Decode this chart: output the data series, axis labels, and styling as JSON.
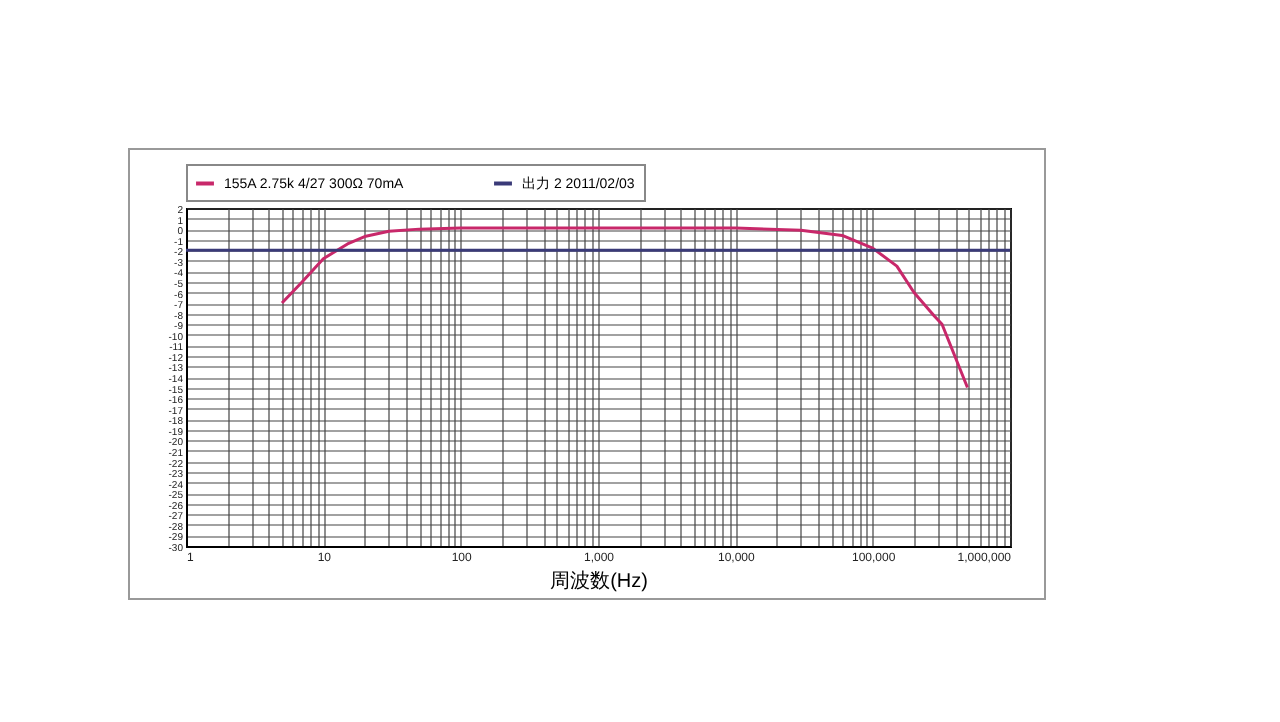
{
  "chart_data": {
    "type": "line",
    "xlabel": "周波数(Hz)",
    "log": "x",
    "grid": true,
    "legend": "top",
    "marker": "none",
    "line_style": "solid",
    "xlim": [
      1,
      1000000
    ],
    "ylim": [
      -30,
      2
    ],
    "xticks": [
      1,
      {
        "value": 2,
        "label": null
      },
      {
        "value": 3,
        "label": null
      },
      {
        "value": 4,
        "label": null
      },
      {
        "value": 5,
        "label": null
      },
      {
        "value": 6,
        "label": null
      },
      {
        "value": 7,
        "label": null
      },
      {
        "value": 8,
        "label": null
      },
      {
        "value": 9,
        "label": null
      },
      10,
      {
        "value": 20,
        "label": null
      },
      {
        "value": 30,
        "label": null
      },
      {
        "value": 40,
        "label": null
      },
      {
        "value": 50,
        "label": null
      },
      {
        "value": 60,
        "label": null
      },
      {
        "value": 70,
        "label": null
      },
      {
        "value": 80,
        "label": null
      },
      {
        "value": 90,
        "label": null
      },
      100,
      {
        "value": 200,
        "label": null
      },
      {
        "value": 300,
        "label": null
      },
      {
        "value": 400,
        "label": null
      },
      {
        "value": 500,
        "label": null
      },
      {
        "value": 600,
        "label": null
      },
      {
        "value": 700,
        "label": null
      },
      {
        "value": 800,
        "label": null
      },
      {
        "value": 900,
        "label": null
      },
      {
        "value": 1000,
        "label": "1,000"
      },
      {
        "value": 2000,
        "label": null
      },
      {
        "value": 3000,
        "label": null
      },
      {
        "value": 4000,
        "label": null
      },
      {
        "value": 5000,
        "label": null
      },
      {
        "value": 6000,
        "label": null
      },
      {
        "value": 7000,
        "label": null
      },
      {
        "value": 8000,
        "label": null
      },
      {
        "value": 9000,
        "label": null
      },
      {
        "value": 10000,
        "label": "10,000"
      },
      {
        "value": 20000,
        "label": null
      },
      {
        "value": 30000,
        "label": null
      },
      {
        "value": 40000,
        "label": null
      },
      {
        "value": 50000,
        "label": null
      },
      {
        "value": 60000,
        "label": null
      },
      {
        "value": 70000,
        "label": null
      },
      {
        "value": 80000,
        "label": null
      },
      {
        "value": 90000,
        "label": null
      },
      {
        "value": 100000,
        "label": "100,000"
      },
      {
        "value": 200000,
        "label": null
      },
      {
        "value": 300000,
        "label": null
      },
      {
        "value": 400000,
        "label": null
      },
      {
        "value": 500000,
        "label": null
      },
      {
        "value": 600000,
        "label": null
      },
      {
        "value": 700000,
        "label": null
      },
      {
        "value": 800000,
        "label": null
      },
      {
        "value": 900000,
        "label": null
      },
      {
        "value": 1000000,
        "label": "1,000,000"
      }
    ],
    "yticks": [
      2,
      1,
      0,
      -1,
      -2,
      -3,
      -4,
      -5,
      -6,
      -7,
      -8,
      -9,
      -10,
      -11,
      -12,
      -13,
      -14,
      -15,
      -16,
      -17,
      -18,
      -19,
      -20,
      -21,
      -22,
      -23,
      -24,
      -25,
      -26,
      -27,
      -28,
      -29,
      -30
    ],
    "series": [
      {
        "name": "155A 2.75k 4/27 300Ω 70mA",
        "color": "#c8286a",
        "x": [
          5,
          7,
          10,
          15,
          20,
          30,
          50,
          100,
          1000,
          10000,
          30000,
          60000,
          100000,
          150000,
          200000,
          280000,
          320000,
          490000
        ],
        "values": [
          -7,
          -5,
          -2.8,
          -1.4,
          -0.7,
          -0.2,
          0,
          0.1,
          0.1,
          0.1,
          -0.1,
          -0.6,
          -1.8,
          -3.5,
          -6,
          -8.2,
          -9,
          -15
        ]
      },
      {
        "name": "出力 2 2011/02/03",
        "color": "#3a3a78",
        "x": [
          1,
          1000000
        ],
        "values": [
          -2,
          -2
        ]
      }
    ]
  }
}
